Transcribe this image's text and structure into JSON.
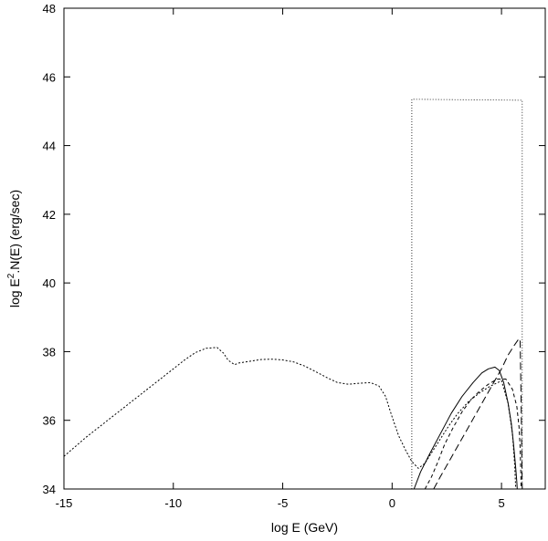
{
  "chart_data": {
    "type": "line",
    "title": "",
    "xlabel": "log E (GeV)",
    "ylabel_parts": {
      "base": "log E",
      "sup": "2",
      "rest": ".N(E) (erg/sec)"
    },
    "xlim": [
      -15,
      7
    ],
    "ylim": [
      34,
      48
    ],
    "xticks": [
      -15,
      -10,
      -5,
      0,
      5
    ],
    "yticks": [
      34,
      36,
      38,
      40,
      42,
      44,
      46,
      48
    ],
    "xtick_labels": [
      "-15",
      "-10",
      "-5",
      "0",
      "5"
    ],
    "ytick_labels": [
      "34",
      "36",
      "38",
      "40",
      "42",
      "44",
      "46",
      "48"
    ],
    "grid": false,
    "legend": "none",
    "series": [
      {
        "style": "solid",
        "x": [
          1.0,
          1.3,
          1.7,
          2.2,
          2.7,
          3.2,
          3.7,
          4.1,
          4.4,
          4.7,
          4.9,
          5.1,
          5.3,
          5.45,
          5.55,
          5.65,
          5.7,
          5.72
        ],
        "y": [
          34.0,
          34.5,
          35.0,
          35.6,
          36.2,
          36.7,
          37.1,
          37.38,
          37.5,
          37.55,
          37.45,
          37.1,
          36.5,
          35.9,
          35.3,
          34.6,
          34.2,
          34.0
        ]
      },
      {
        "style": "dashed",
        "x": [
          1.5,
          1.8,
          2.1,
          2.4,
          2.8,
          3.2,
          3.6,
          4.0,
          4.4,
          4.8,
          5.2,
          5.5,
          5.7,
          5.8,
          5.85,
          5.88,
          5.9
        ],
        "y": [
          34.0,
          34.35,
          34.8,
          35.3,
          35.8,
          36.25,
          36.6,
          36.85,
          37.05,
          37.2,
          37.2,
          36.9,
          36.4,
          35.8,
          35.2,
          34.5,
          34.0
        ]
      },
      {
        "style": "dotted",
        "x": [
          -15.0,
          -14.0,
          -13.0,
          -12.0,
          -11.0,
          -10.0,
          -9.5,
          -9.0,
          -8.5,
          -8.0,
          -7.7,
          -7.5,
          -7.2,
          -7.0,
          -6.5,
          -6.0,
          -5.5,
          -5.0,
          -4.5,
          -4.0,
          -3.5,
          -3.0,
          -2.5,
          -2.0,
          -1.5,
          -1.0,
          -0.6,
          -0.3,
          0.0,
          0.3,
          0.6,
          0.9,
          1.2,
          1.5,
          1.8,
          2.2,
          2.6,
          3.0,
          3.5,
          4.0,
          4.5,
          5.0,
          5.3,
          5.5,
          5.6,
          5.65
        ],
        "y": [
          34.95,
          35.5,
          36.0,
          36.5,
          37.0,
          37.5,
          37.75,
          37.97,
          38.1,
          38.12,
          37.95,
          37.75,
          37.62,
          37.67,
          37.72,
          37.77,
          37.78,
          37.76,
          37.7,
          37.58,
          37.42,
          37.25,
          37.1,
          37.05,
          37.08,
          37.1,
          37.0,
          36.7,
          36.1,
          35.55,
          35.15,
          34.8,
          34.6,
          34.75,
          35.05,
          35.45,
          35.85,
          36.2,
          36.55,
          36.8,
          37.0,
          37.15,
          36.5,
          35.6,
          34.7,
          34.0
        ]
      },
      {
        "style": "long-dashed",
        "x": [
          1.9,
          2.2,
          2.6,
          3.0,
          3.4,
          3.8,
          4.2,
          4.6,
          5.0,
          5.3,
          5.6,
          5.8,
          5.85,
          5.9,
          5.95
        ],
        "y": [
          34.0,
          34.35,
          34.8,
          35.25,
          35.7,
          36.15,
          36.6,
          37.05,
          37.5,
          37.9,
          38.2,
          38.38,
          38.3,
          36.5,
          34.0
        ]
      },
      {
        "style": "fine-dotted",
        "x": [
          0.9,
          0.9,
          5.95,
          5.95
        ],
        "y": [
          34.0,
          45.35,
          45.32,
          34.0
        ]
      }
    ]
  }
}
